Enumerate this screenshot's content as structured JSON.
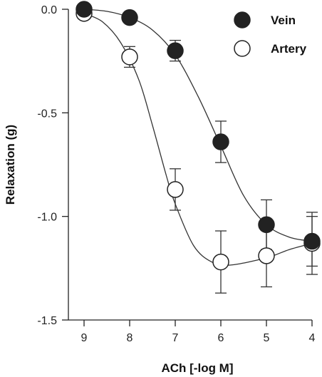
{
  "chart_data": {
    "type": "scatter",
    "title": "",
    "xlabel": "ACh [-log M]",
    "ylabel": "Relaxation (g)",
    "x_reversed": true,
    "xlim": [
      9,
      4
    ],
    "ylim": [
      -1.5,
      0.0
    ],
    "x_ticks": [
      9,
      8,
      7,
      6,
      5,
      4
    ],
    "y_ticks": [
      0.0,
      -0.5,
      -1.0,
      -1.5
    ],
    "y_tick_labels": [
      "0.0",
      "-0.5",
      "-1.0",
      "-1.5"
    ],
    "grid": false,
    "legend_position": "top-right",
    "series": [
      {
        "name": "Vein",
        "marker": "filled-circle",
        "color": "#222222",
        "x": [
          9,
          8,
          7,
          6,
          5,
          4
        ],
        "y": [
          0.0,
          -0.04,
          -0.2,
          -0.64,
          -1.04,
          -1.12
        ],
        "error": [
          0.0,
          0.0,
          0.05,
          0.1,
          0.12,
          0.12
        ],
        "fit_curve": [
          [
            9,
            0.0
          ],
          [
            8.5,
            -0.01
          ],
          [
            8,
            -0.04
          ],
          [
            7.5,
            -0.1
          ],
          [
            7,
            -0.22
          ],
          [
            6.5,
            -0.42
          ],
          [
            6,
            -0.66
          ],
          [
            5.5,
            -0.9
          ],
          [
            5,
            -1.04
          ],
          [
            4.5,
            -1.1
          ],
          [
            4,
            -1.12
          ]
        ]
      },
      {
        "name": "Artery",
        "marker": "open-circle",
        "color": "#222222",
        "x": [
          9,
          8,
          7,
          6,
          5,
          4
        ],
        "y": [
          -0.02,
          -0.23,
          -0.87,
          -1.22,
          -1.19,
          -1.13
        ],
        "error": [
          0.0,
          0.05,
          0.1,
          0.15,
          0.15,
          0.15
        ],
        "fit_curve": [
          [
            9,
            -0.02
          ],
          [
            8.6,
            -0.06
          ],
          [
            8.2,
            -0.16
          ],
          [
            7.8,
            -0.34
          ],
          [
            7.5,
            -0.56
          ],
          [
            7.2,
            -0.8
          ],
          [
            7,
            -0.94
          ],
          [
            6.6,
            -1.14
          ],
          [
            6.2,
            -1.22
          ],
          [
            5.8,
            -1.235
          ],
          [
            5,
            -1.2
          ],
          [
            4.5,
            -1.16
          ],
          [
            4,
            -1.13
          ]
        ]
      }
    ]
  }
}
